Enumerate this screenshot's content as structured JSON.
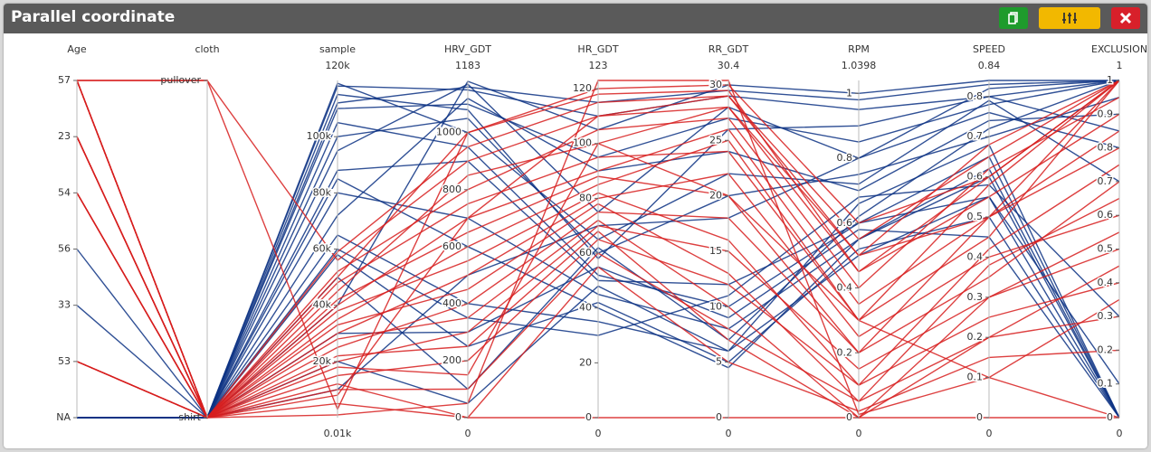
{
  "chart_data": {
    "type": "parallel",
    "title": "Parallel coordinate",
    "dimensions": [
      {
        "name": "Age",
        "categories": [
          "57",
          "23",
          "54",
          "56",
          "33",
          "53",
          "NA"
        ]
      },
      {
        "name": "cloth",
        "categories": [
          "pullover",
          "shirt"
        ]
      },
      {
        "name": "sample",
        "range": [
          {
            "value": 10,
            "label": "0.01k"
          },
          {
            "value": 120000,
            "label": "120k"
          }
        ],
        "ticks": [
          {
            "value": 20000,
            "label": "20k"
          },
          {
            "value": 40000,
            "label": "40k"
          },
          {
            "value": 60000,
            "label": "60k"
          },
          {
            "value": 80000,
            "label": "80k"
          },
          {
            "value": 100000,
            "label": "100k"
          }
        ]
      },
      {
        "name": "HRV_GDT",
        "range": [
          0,
          1183
        ],
        "ticks": [
          0,
          200,
          400,
          600,
          800,
          1000
        ]
      },
      {
        "name": "HR_GDT",
        "range": [
          0,
          123
        ],
        "ticks": [
          0,
          20,
          40,
          60,
          80,
          100,
          120
        ]
      },
      {
        "name": "RR_GDT",
        "range": [
          0,
          30.4
        ],
        "ticks": [
          0,
          5,
          10,
          15,
          20,
          25,
          30
        ]
      },
      {
        "name": "RPM",
        "range": [
          0,
          1.0398
        ],
        "ticks": [
          0,
          0.2,
          0.4,
          0.6,
          0.8,
          1
        ]
      },
      {
        "name": "SPEED",
        "range": [
          0,
          0.84
        ],
        "ticks": [
          0,
          0.1,
          0.2,
          0.3,
          0.4,
          0.5,
          0.6,
          0.7,
          0.8
        ]
      },
      {
        "name": "EXCLUSION",
        "range": [
          0,
          1
        ],
        "ticks": [
          0,
          0.1,
          0.2,
          0.3,
          0.4,
          0.5,
          0.6,
          0.7,
          0.8,
          0.9,
          1
        ]
      }
    ],
    "series": [
      {
        "color": "#0d3384",
        "lines": [
          [
            "NA",
            "shirt",
            118000,
            1150,
            110,
            29,
            0.95,
            0.8,
            1
          ],
          [
            "NA",
            "shirt",
            110000,
            1100,
            95,
            27,
            0.85,
            0.78,
            1
          ],
          [
            "NA",
            "shirt",
            100000,
            1050,
            60,
            20,
            0.75,
            0.7,
            0.95
          ],
          [
            "NA",
            "shirt",
            95000,
            1170,
            75,
            28,
            0.8,
            0.82,
            1
          ],
          [
            "NA",
            "shirt",
            88000,
            900,
            50,
            12,
            0.6,
            0.65,
            0
          ],
          [
            "NA",
            "shirt",
            80000,
            700,
            45,
            8,
            0.55,
            0.6,
            0
          ],
          [
            "NA",
            "shirt",
            72000,
            1120,
            90,
            24,
            0.7,
            0.74,
            0.9
          ],
          [
            "NA",
            "shirt",
            65000,
            400,
            35,
            6,
            0.5,
            0.55,
            0.1
          ],
          [
            "NA",
            "shirt",
            58000,
            250,
            42,
            5,
            0.52,
            0.5,
            0
          ],
          [
            "NA",
            "shirt",
            50000,
            100,
            62,
            7,
            0.62,
            0.72,
            1
          ],
          [
            "NA",
            "shirt",
            40000,
            1180,
            105,
            30,
            1.0,
            0.84,
            1
          ],
          [
            "NA",
            "shirt",
            30000,
            300,
            55,
            9,
            0.58,
            0.45,
            0
          ],
          [
            "NA",
            "shirt",
            20000,
            50,
            48,
            6,
            0.66,
            0.68,
            0
          ],
          [
            "NA",
            "shirt",
            10000,
            500,
            70,
            18,
            0.8,
            0.76,
            0.8
          ],
          [
            "56",
            "shirt",
            115000,
            1080,
            58,
            26,
            0.9,
            0.8,
            0.85
          ],
          [
            "33",
            "shirt",
            105000,
            950,
            52,
            10,
            0.6,
            0.55,
            0
          ],
          [
            "NA",
            "shirt",
            119000,
            1000,
            65,
            22,
            0.72,
            0.79,
            0.7
          ],
          [
            "NA",
            "shirt",
            85000,
            600,
            40,
            4.5,
            0.55,
            0.62,
            0
          ],
          [
            "NA",
            "shirt",
            112000,
            1160,
            115,
            29.5,
            0.98,
            0.83,
            1
          ],
          [
            "NA",
            "shirt",
            60000,
            350,
            30,
            11,
            0.68,
            0.58,
            0.3
          ]
        ]
      },
      {
        "color": "#d71f1f",
        "lines": [
          [
            "57",
            "pullover",
            56000,
            900,
            110,
            29,
            0.5,
            0.68,
            1
          ],
          [
            "57",
            "shirt",
            50000,
            1000,
            120,
            30,
            0.6,
            0.6,
            1
          ],
          [
            "23",
            "shirt",
            45000,
            850,
            100,
            28,
            0.45,
            0.55,
            0.9
          ],
          [
            "54",
            "shirt",
            40000,
            700,
            90,
            26,
            0.35,
            0.5,
            0.8
          ],
          [
            "53",
            "shirt",
            35000,
            600,
            85,
            25,
            0.3,
            0.45,
            1
          ],
          [
            "57",
            "shirt",
            30000,
            500,
            80,
            22,
            0.25,
            0.4,
            0.6
          ],
          [
            "23",
            "shirt",
            25000,
            400,
            75,
            18,
            0.2,
            0.35,
            0.7
          ],
          [
            "54",
            "shirt",
            20000,
            300,
            70,
            15,
            0.15,
            0.3,
            0.5
          ],
          [
            "53",
            "shirt",
            15000,
            200,
            65,
            12,
            0.1,
            0.25,
            0.4
          ],
          [
            "57",
            "shirt",
            10000,
            100,
            60,
            8,
            0.05,
            0.2,
            0.3
          ],
          [
            "23",
            "shirt",
            5000,
            0,
            55,
            5,
            0.02,
            0.15,
            0.2
          ],
          [
            "54",
            "shirt",
            1000,
            50,
            123,
            30.4,
            0.01,
            0.1,
            0
          ],
          [
            "53",
            "shirt",
            59000,
            950,
            115,
            29,
            0.55,
            0.65,
            1
          ],
          [
            "57",
            "shirt",
            52000,
            800,
            105,
            27,
            0.4,
            0.62,
            0.95
          ],
          [
            "23",
            "shirt",
            48000,
            750,
            95,
            24,
            0.3,
            0.58,
            1
          ],
          [
            "54",
            "shirt",
            42000,
            650,
            88,
            20,
            0.2,
            0.5,
            0.85
          ],
          [
            "53",
            "shirt",
            38000,
            550,
            82,
            16,
            0.1,
            0.42,
            0.75
          ],
          [
            "57",
            "shirt",
            33000,
            450,
            78,
            13,
            0.05,
            0.38,
            0.65
          ],
          [
            "23",
            "shirt",
            28000,
            350,
            72,
            10,
            0,
            0.3,
            0.55
          ],
          [
            "54",
            "shirt",
            22000,
            250,
            68,
            7,
            0,
            0.2,
            0.45
          ],
          [
            "53",
            "shirt",
            18000,
            150,
            100,
            20,
            0.3,
            0.1,
            0.35
          ],
          [
            "57",
            "shirt",
            12000,
            0,
            0,
            0,
            0,
            0,
            0
          ],
          [
            "23",
            "shirt",
            8000,
            700,
            110,
            28,
            0.5,
            0.5,
            1
          ],
          [
            "57",
            "pullover",
            3000,
            1000,
            118,
            29.5,
            0.45,
            0.6,
            1
          ]
        ]
      }
    ]
  }
}
